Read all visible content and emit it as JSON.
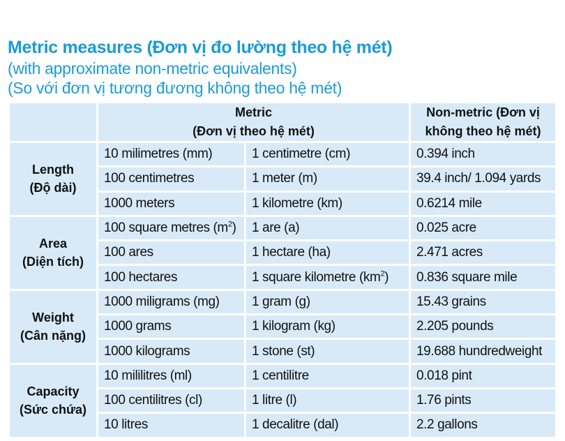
{
  "title": {
    "line1": "Metric measures (Đơn vị đo lường theo hệ mét)",
    "line2": "(with approximate non-metric equivalents)",
    "line3": "(So với đơn vị tương đương không theo hệ mét)"
  },
  "header": {
    "metric_en": "Metric",
    "metric_vi": "(Đơn vị theo hệ mét)",
    "nonmetric_line1": "Non-metric (Đơn vị",
    "nonmetric_line2": "không theo hệ mét)"
  },
  "groups": [
    {
      "name_en": "Length",
      "name_vi": "(Độ dài)",
      "rows": [
        {
          "from": "10 milimetres (mm)",
          "to": "1 centimetre (cm)",
          "equiv": "0.394 inch"
        },
        {
          "from": "100 centimetres",
          "to": "1 meter (m)",
          "equiv": "39.4 inch/ 1.094 yards"
        },
        {
          "from": "1000 meters",
          "to": "1 kilometre (km)",
          "equiv": "0.6214 mile"
        }
      ]
    },
    {
      "name_en": "Area",
      "name_vi": "(Diện tích)",
      "rows": [
        {
          "from": "100 square metres (m",
          "from_sup": "2",
          "from_tail": ")",
          "to": "1 are (a)",
          "equiv": "0.025 acre"
        },
        {
          "from": "100 ares",
          "to": "1 hectare (ha)",
          "equiv": "2.471 acres"
        },
        {
          "from": "100 hectares",
          "to": "1 square kilometre (km",
          "to_sup": "2",
          "to_tail": ")",
          "equiv": "0.836 square mile"
        }
      ]
    },
    {
      "name_en": "Weight",
      "name_vi": "(Cân nặng)",
      "rows": [
        {
          "from": "1000 miligrams (mg)",
          "to": "1 gram (g)",
          "equiv": "15.43 grains"
        },
        {
          "from": "1000 grams",
          "to": "1 kilogram (kg)",
          "equiv": "2.205 pounds"
        },
        {
          "from": "1000 kilograms",
          "to": "1 stone (st)",
          "equiv": "19.688 hundredweight"
        }
      ]
    },
    {
      "name_en": "Capacity",
      "name_vi": "(Sức chứa)",
      "rows": [
        {
          "from": "10 mililitres (ml)",
          "to": "1 centilitre",
          "equiv": "0.018 pint"
        },
        {
          "from": "100 centilitres (cl)",
          "to": "1 litre (l)",
          "equiv": "1.76 pints"
        },
        {
          "from": "10 litres",
          "to": "1 decalitre (dal)",
          "equiv": "2.2 gallons"
        }
      ]
    }
  ]
}
